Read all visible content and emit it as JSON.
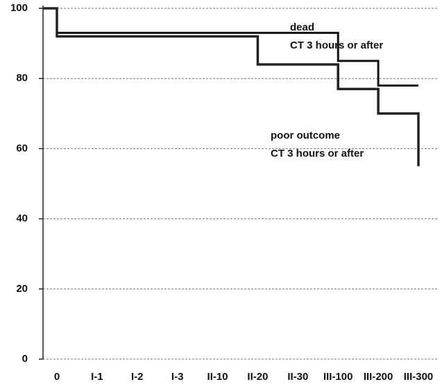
{
  "chart_data": {
    "type": "step",
    "categories": [
      "0",
      "I-1",
      "I-2",
      "I-3",
      "II-10",
      "II-20",
      "II-30",
      "III-100",
      "III-200",
      "III-300"
    ],
    "series": [
      {
        "name": "dead",
        "color": "#111111",
        "values": [
          93,
          93,
          93,
          93,
          93,
          93,
          93,
          85,
          78,
          78
        ],
        "subtitle": "CT 3 hours or after"
      },
      {
        "name": "poor outcome",
        "color": "#222222",
        "values": [
          92,
          92,
          92,
          92,
          92,
          84,
          84,
          77,
          70,
          55
        ],
        "subtitle": "CT 3 hours or after"
      }
    ],
    "ylim": [
      0,
      100
    ],
    "yticks": [
      0,
      20,
      40,
      60,
      80,
      100
    ],
    "grid": true
  }
}
